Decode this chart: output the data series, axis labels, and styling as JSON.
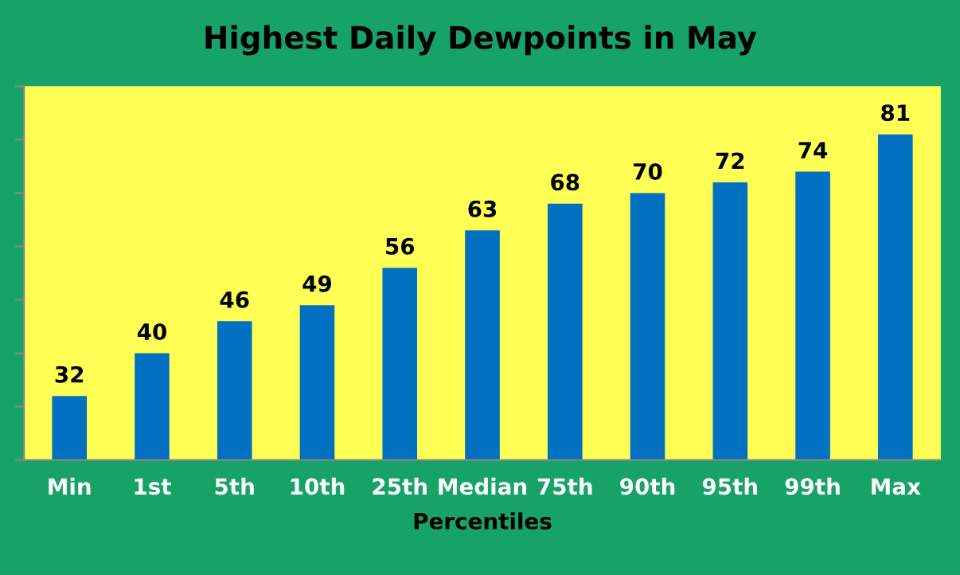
{
  "chart_data": {
    "type": "bar",
    "title": "Highest Daily Dewpoints in May",
    "xlabel": "Percentiles",
    "categories": [
      "Min",
      "1st",
      "5th",
      "10th",
      "25th",
      "Median",
      "75th",
      "90th",
      "95th",
      "99th",
      "Max"
    ],
    "values": [
      32,
      40,
      46,
      49,
      56,
      63,
      68,
      70,
      72,
      74,
      81
    ],
    "color": "#0070c0",
    "ylim": [
      20,
      90
    ],
    "yticks": [
      {
        "value": 20,
        "label": null
      },
      {
        "value": 30,
        "label": null
      },
      {
        "value": 40,
        "label": null
      },
      {
        "value": 50,
        "label": null
      },
      {
        "value": 60,
        "label": null
      },
      {
        "value": 70,
        "label": null
      },
      {
        "value": 80,
        "label": null
      },
      {
        "value": 90,
        "label": null
      }
    ],
    "data_labels": true,
    "grid": false,
    "legend": false
  }
}
